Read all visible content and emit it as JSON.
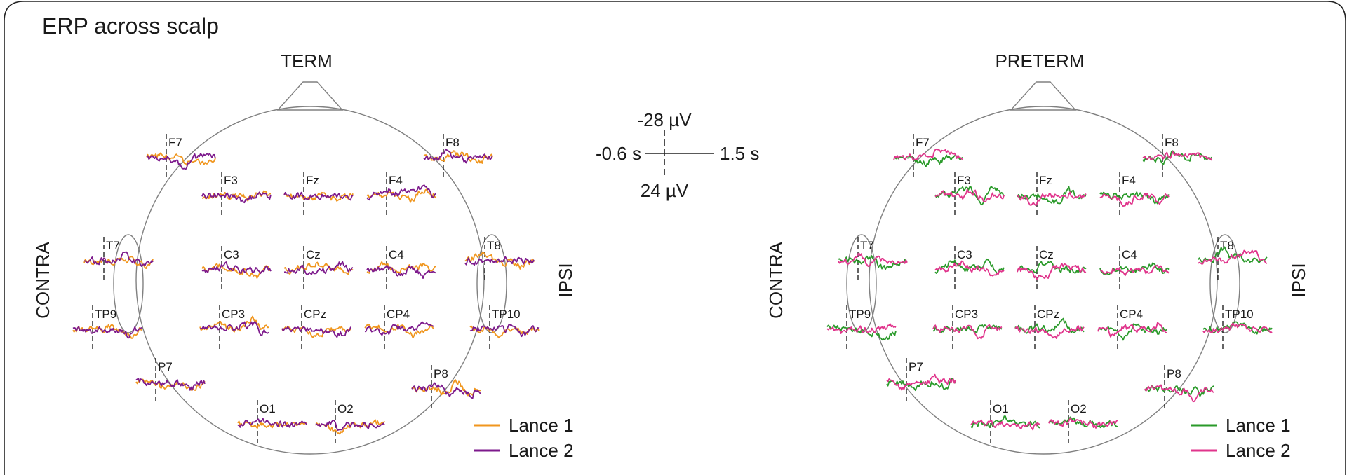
{
  "figure": {
    "title": "ERP across scalp",
    "scale_bar": {
      "top_label": "-28 µV",
      "bottom_label": "24 µV",
      "left_label": "-0.6 s",
      "right_label": "1.5 s"
    }
  },
  "panels": [
    {
      "title": "TERM",
      "left_side_label": "CONTRA",
      "right_side_label": "IPSI",
      "legend": [
        {
          "label": "Lance 1",
          "color": "#f0961e"
        },
        {
          "label": "Lance 2",
          "color": "#7d1a8c"
        }
      ],
      "electrodes": [
        "F7",
        "F8",
        "F3",
        "Fz",
        "F4",
        "T7",
        "T8",
        "C3",
        "Cz",
        "C4",
        "TP9",
        "TP10",
        "CP3",
        "CPz",
        "CP4",
        "P7",
        "P8",
        "O1",
        "O2"
      ]
    },
    {
      "title": "PRETERM",
      "left_side_label": "CONTRA",
      "right_side_label": "IPSI",
      "legend": [
        {
          "label": "Lance 1",
          "color": "#2a9a2a"
        },
        {
          "label": "Lance 2",
          "color": "#e0358c"
        }
      ],
      "electrodes": [
        "F7",
        "F8",
        "F3",
        "Fz",
        "F4",
        "T7",
        "T8",
        "C3",
        "Cz",
        "C4",
        "TP9",
        "TP10",
        "CP3",
        "CPz",
        "CP4",
        "P7",
        "P8",
        "O1",
        "O2"
      ]
    }
  ]
}
